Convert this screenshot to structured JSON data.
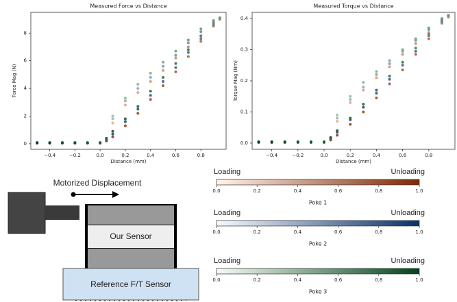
{
  "chart_data": [
    {
      "type": "scatter",
      "title": "Measured Force vs Distance",
      "xlabel": "Distance (mm)",
      "ylabel": "Force Mag (N)",
      "xlim": [
        -0.55,
        1.0
      ],
      "ylim": [
        -0.4,
        9.5
      ],
      "xticks": [
        {
          "value": -0.4,
          "label": "−0.4"
        },
        {
          "value": -0.2,
          "label": "−0.2"
        },
        {
          "value": 0,
          "label": "0.0"
        },
        0.2,
        0.4,
        0.6,
        0.8
      ],
      "yticks": [
        0,
        2,
        4,
        6,
        8
      ],
      "series": [
        {
          "colors": [
            "#fdd9b4",
            "#7f2704"
          ],
          "x": [
            -0.5,
            -0.4,
            -0.3,
            -0.2,
            -0.1,
            0,
            0.1,
            0.2,
            0.3,
            0.4,
            0.5,
            0.6,
            0.7,
            0.8,
            0.9,
            0.95,
            0.9,
            0.8,
            0.7,
            0.6,
            0.5,
            0.4,
            0.3,
            0.2,
            0.1,
            0.05,
            0,
            -0.1,
            -0.2,
            -0.3,
            -0.4,
            -0.5
          ],
          "values": [
            0.05,
            0.05,
            0.05,
            0.05,
            0.05,
            0.05,
            1.5,
            2.8,
            3.7,
            4.5,
            5.3,
            6.2,
            7.0,
            7.8,
            8.6,
            9.0,
            8.5,
            7.4,
            6.3,
            5.2,
            4.2,
            3.2,
            2.2,
            1.3,
            0.5,
            0.2,
            0.05,
            0.05,
            0.05,
            0.05,
            0.05,
            0.05
          ]
        },
        {
          "colors": [
            "#c6dbef",
            "#08306b"
          ],
          "x": [
            -0.5,
            -0.4,
            -0.3,
            -0.2,
            -0.1,
            0,
            0.1,
            0.2,
            0.3,
            0.4,
            0.5,
            0.6,
            0.7,
            0.8,
            0.9,
            0.95,
            0.9,
            0.8,
            0.7,
            0.6,
            0.5,
            0.4,
            0.3,
            0.2,
            0.1,
            0.05,
            0,
            -0.1,
            -0.2,
            -0.3,
            -0.4,
            -0.5
          ],
          "values": [
            0.08,
            0.08,
            0.08,
            0.08,
            0.08,
            0.08,
            1.8,
            3.1,
            4.0,
            4.8,
            5.6,
            6.4,
            7.3,
            8.1,
            8.8,
            9.1,
            8.6,
            7.6,
            6.6,
            5.5,
            4.5,
            3.5,
            2.5,
            1.6,
            0.7,
            0.3,
            0.08,
            0.08,
            0.08,
            0.08,
            0.08,
            0.08
          ]
        },
        {
          "colors": [
            "#c7e9c0",
            "#00441b"
          ],
          "x": [
            -0.5,
            -0.4,
            -0.3,
            -0.2,
            -0.1,
            0,
            0.1,
            0.2,
            0.3,
            0.4,
            0.5,
            0.6,
            0.7,
            0.8,
            0.9,
            0.95,
            0.9,
            0.8,
            0.7,
            0.6,
            0.5,
            0.4,
            0.3,
            0.2,
            0.1,
            0.05,
            0,
            -0.1,
            -0.2,
            -0.3,
            -0.4,
            -0.5
          ],
          "values": [
            0.03,
            0.03,
            0.03,
            0.03,
            0.03,
            0.03,
            2.0,
            3.3,
            4.3,
            5.1,
            5.9,
            6.7,
            7.5,
            8.3,
            8.9,
            9.1,
            8.7,
            7.8,
            6.8,
            5.8,
            4.8,
            3.8,
            2.7,
            1.8,
            0.9,
            0.4,
            0.05,
            0.05,
            0.05,
            0.05,
            0.05,
            0.05
          ]
        }
      ]
    },
    {
      "type": "scatter",
      "title": "Measured Torque vs Distance",
      "xlabel": "Distance (mm)",
      "ylabel": "Torque Mag (Nm)",
      "xlim": [
        -0.55,
        1.0
      ],
      "ylim": [
        -0.02,
        0.42
      ],
      "xticks": [
        {
          "value": -0.4,
          "label": "−0.4"
        },
        {
          "value": -0.2,
          "label": "−0.2"
        },
        {
          "value": 0,
          "label": "0.0"
        },
        0.2,
        0.4,
        0.6,
        0.8
      ],
      "yticks": [
        {
          "value": 0,
          "label": "0.0"
        },
        0.1,
        0.2,
        0.3,
        0.4
      ],
      "series": [
        {
          "colors": [
            "#fdd9b4",
            "#7f2704"
          ],
          "x": [
            -0.5,
            -0.4,
            -0.3,
            -0.2,
            -0.1,
            0,
            0.1,
            0.2,
            0.3,
            0.4,
            0.5,
            0.6,
            0.7,
            0.8,
            0.9,
            0.95,
            0.9,
            0.8,
            0.7,
            0.6,
            0.5,
            0.4,
            0.3,
            0.2,
            0.1,
            0.05,
            0,
            -0.1,
            -0.2,
            -0.3,
            -0.4,
            -0.5
          ],
          "values": [
            0.002,
            0.002,
            0.002,
            0.002,
            0.002,
            0.002,
            0.07,
            0.13,
            0.17,
            0.21,
            0.245,
            0.285,
            0.32,
            0.355,
            0.39,
            0.405,
            0.385,
            0.335,
            0.285,
            0.235,
            0.19,
            0.145,
            0.1,
            0.06,
            0.025,
            0.01,
            0.002,
            0.002,
            0.002,
            0.002,
            0.002,
            0.002
          ]
        },
        {
          "colors": [
            "#c6dbef",
            "#08306b"
          ],
          "x": [
            -0.5,
            -0.4,
            -0.3,
            -0.2,
            -0.1,
            0,
            0.1,
            0.2,
            0.3,
            0.4,
            0.5,
            0.6,
            0.7,
            0.8,
            0.9,
            0.95,
            0.9,
            0.8,
            0.7,
            0.6,
            0.5,
            0.4,
            0.3,
            0.2,
            0.1,
            0.05,
            0,
            -0.1,
            -0.2,
            -0.3,
            -0.4,
            -0.5
          ],
          "values": [
            0.003,
            0.003,
            0.003,
            0.003,
            0.003,
            0.003,
            0.08,
            0.14,
            0.18,
            0.22,
            0.255,
            0.295,
            0.33,
            0.365,
            0.395,
            0.41,
            0.39,
            0.345,
            0.295,
            0.25,
            0.205,
            0.16,
            0.115,
            0.075,
            0.035,
            0.015,
            0.003,
            0.003,
            0.003,
            0.003,
            0.003,
            0.003
          ]
        },
        {
          "colors": [
            "#c7e9c0",
            "#00441b"
          ],
          "x": [
            -0.5,
            -0.4,
            -0.3,
            -0.2,
            -0.1,
            0,
            0.1,
            0.2,
            0.3,
            0.4,
            0.5,
            0.6,
            0.7,
            0.8,
            0.9,
            0.95,
            0.9,
            0.8,
            0.7,
            0.6,
            0.5,
            0.4,
            0.3,
            0.2,
            0.1,
            0.05,
            0,
            -0.1,
            -0.2,
            -0.3,
            -0.4,
            -0.5
          ],
          "values": [
            0.004,
            0.004,
            0.004,
            0.004,
            0.004,
            0.004,
            0.09,
            0.15,
            0.195,
            0.23,
            0.265,
            0.3,
            0.335,
            0.37,
            0.4,
            0.41,
            0.395,
            0.35,
            0.305,
            0.26,
            0.215,
            0.17,
            0.125,
            0.08,
            0.04,
            0.018,
            0.004,
            0.004,
            0.004,
            0.004,
            0.004,
            0.004
          ]
        }
      ]
    }
  ],
  "colorbars": [
    {
      "left": "Loading",
      "right": "Unloading",
      "title": "Poke 1",
      "colors": [
        "#fff5eb",
        "#7f2704"
      ],
      "lim": [
        0,
        1
      ],
      "ticks": [
        {
          "value": 0,
          "label": "0.0"
        },
        0.2,
        0.4,
        0.6,
        0.8,
        {
          "value": 1,
          "label": "1.0"
        }
      ]
    },
    {
      "left": "Loading",
      "right": "Unloading",
      "title": "Poke 2",
      "colors": [
        "#f7fbff",
        "#08306b"
      ],
      "lim": [
        0,
        1
      ],
      "ticks": [
        {
          "value": 0,
          "label": "0.0"
        },
        0.2,
        0.4,
        0.6,
        0.8,
        {
          "value": 1,
          "label": "1.0"
        }
      ]
    },
    {
      "left": "Loading",
      "right": "Unloading",
      "title": "Poke 3",
      "colors": [
        "#f7fcf5",
        "#00441b"
      ],
      "lim": [
        0,
        1
      ],
      "ticks": [
        {
          "value": 0,
          "label": "0.0"
        },
        0.2,
        0.4,
        0.6,
        0.8,
        {
          "value": 1,
          "label": "1.0"
        }
      ]
    }
  ],
  "diagram": {
    "motion": "Motorized Displacement",
    "sensor": "Our Sensor",
    "reference": "Reference F/T Sensor"
  }
}
